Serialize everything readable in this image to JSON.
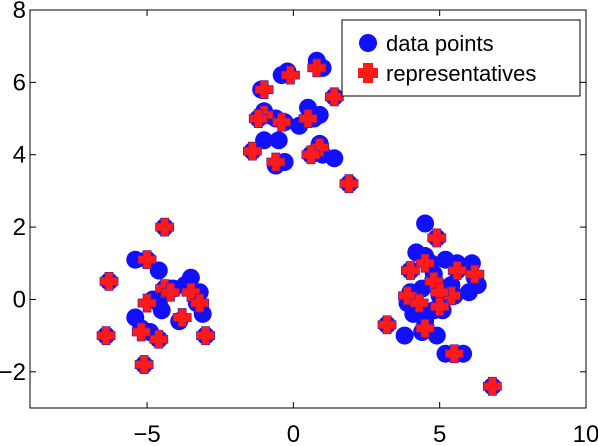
{
  "chart_data": {
    "type": "scatter",
    "title": "",
    "xlabel": "",
    "ylabel": "",
    "xlim": [
      -9,
      10
    ],
    "ylim": [
      -3,
      8
    ],
    "xticks": [
      -5,
      0,
      5,
      10
    ],
    "yticks": [
      -2,
      0,
      2,
      4,
      6,
      8
    ],
    "xtick_labels": [
      "−5",
      "0",
      "5",
      "10"
    ],
    "ytick_labels": [
      "−2",
      "0",
      "2",
      "4",
      "6",
      "8"
    ],
    "grid": false,
    "legend_position": "top-right",
    "series": [
      {
        "name": "data points",
        "marker": "circle",
        "color": "#1010ff",
        "points": [
          [
            -5.4,
            1.1
          ],
          [
            -5.0,
            1.1
          ],
          [
            -4.6,
            0.8
          ],
          [
            -4.4,
            0.3
          ],
          [
            -4.1,
            0.3
          ],
          [
            -3.7,
            0.4
          ],
          [
            -3.5,
            0.6
          ],
          [
            -3.2,
            0.2
          ],
          [
            -4.8,
            0.0
          ],
          [
            -4.6,
            -0.1
          ],
          [
            -4.2,
            0.3
          ],
          [
            -3.9,
            -0.6
          ],
          [
            -4.5,
            -0.3
          ],
          [
            -5.4,
            -0.5
          ],
          [
            -5.2,
            -0.8
          ],
          [
            -4.9,
            -0.9
          ],
          [
            -3.3,
            -0.1
          ],
          [
            -3.1,
            -0.4
          ],
          [
            -4.6,
            -1.1
          ],
          [
            -6.4,
            -1.0
          ],
          [
            -3.0,
            -1.0
          ],
          [
            -5.1,
            -1.8
          ],
          [
            -6.3,
            0.5
          ],
          [
            -4.4,
            2.0
          ],
          [
            -1.0,
            5.2
          ],
          [
            -1.1,
            5.8
          ],
          [
            -1.2,
            5.0
          ],
          [
            -1.4,
            4.1
          ],
          [
            -1.0,
            4.4
          ],
          [
            -0.5,
            4.4
          ],
          [
            -0.6,
            3.7
          ],
          [
            -0.3,
            3.8
          ],
          [
            -0.4,
            6.2
          ],
          [
            -0.2,
            6.3
          ],
          [
            0.2,
            4.8
          ],
          [
            0.5,
            5.3
          ],
          [
            0.7,
            5.0
          ],
          [
            0.9,
            4.3
          ],
          [
            1.0,
            4.0
          ],
          [
            1.4,
            3.9
          ],
          [
            0.6,
            4.0
          ],
          [
            0.8,
            6.6
          ],
          [
            1.0,
            6.4
          ],
          [
            0.9,
            5.1
          ],
          [
            1.4,
            5.6
          ],
          [
            1.9,
            3.2
          ],
          [
            -0.3,
            4.9
          ],
          [
            -0.6,
            5.0
          ],
          [
            4.5,
            2.1
          ],
          [
            4.9,
            1.7
          ],
          [
            4.2,
            1.3
          ],
          [
            4.5,
            1.2
          ],
          [
            4.7,
            1.0
          ],
          [
            5.2,
            1.1
          ],
          [
            5.6,
            1.0
          ],
          [
            6.1,
            1.0
          ],
          [
            4.0,
            0.8
          ],
          [
            4.8,
            0.7
          ],
          [
            5.6,
            0.8
          ],
          [
            6.2,
            0.6
          ],
          [
            6.3,
            0.4
          ],
          [
            4.9,
            0.4
          ],
          [
            5.4,
            0.4
          ],
          [
            4.0,
            0.2
          ],
          [
            4.4,
            0.3
          ],
          [
            5.0,
            0.1
          ],
          [
            5.5,
            0.1
          ],
          [
            6.0,
            0.2
          ],
          [
            3.9,
            -0.1
          ],
          [
            4.3,
            -0.2
          ],
          [
            4.8,
            -0.3
          ],
          [
            5.1,
            -0.3
          ],
          [
            4.1,
            -0.4
          ],
          [
            4.5,
            -0.6
          ],
          [
            4.4,
            -0.9
          ],
          [
            3.8,
            -1.0
          ],
          [
            4.9,
            -1.0
          ],
          [
            5.2,
            -1.5
          ],
          [
            5.8,
            -1.5
          ],
          [
            3.2,
            -0.7
          ],
          [
            6.8,
            -2.4
          ]
        ]
      },
      {
        "name": "representatives",
        "marker": "plus",
        "color": "#ff1a1a",
        "points": [
          [
            -5.0,
            1.1
          ],
          [
            -4.4,
            2.0
          ],
          [
            -6.3,
            0.5
          ],
          [
            -4.4,
            0.3
          ],
          [
            -4.2,
            0.2
          ],
          [
            -3.5,
            0.2
          ],
          [
            -5.0,
            -0.1
          ],
          [
            -3.8,
            -0.5
          ],
          [
            -5.2,
            -0.9
          ],
          [
            -4.6,
            -1.1
          ],
          [
            -3.2,
            -0.1
          ],
          [
            -6.4,
            -1.0
          ],
          [
            -3.0,
            -1.0
          ],
          [
            -5.1,
            -1.8
          ],
          [
            -1.0,
            5.8
          ],
          [
            -1.0,
            5.1
          ],
          [
            -1.2,
            5.0
          ],
          [
            -1.4,
            4.1
          ],
          [
            -0.4,
            4.9
          ],
          [
            -0.6,
            3.8
          ],
          [
            -0.1,
            6.2
          ],
          [
            0.5,
            5.0
          ],
          [
            0.8,
            6.4
          ],
          [
            0.9,
            4.2
          ],
          [
            0.6,
            4.0
          ],
          [
            1.4,
            5.6
          ],
          [
            1.9,
            3.2
          ],
          [
            4.9,
            1.7
          ],
          [
            4.5,
            1.0
          ],
          [
            4.0,
            0.8
          ],
          [
            5.6,
            0.8
          ],
          [
            6.2,
            0.7
          ],
          [
            4.8,
            0.5
          ],
          [
            5.4,
            0.1
          ],
          [
            5.0,
            0.2
          ],
          [
            3.9,
            0.1
          ],
          [
            4.3,
            -0.1
          ],
          [
            5.0,
            -0.2
          ],
          [
            4.5,
            -0.8
          ],
          [
            3.2,
            -0.7
          ],
          [
            5.5,
            -1.5
          ],
          [
            6.8,
            -2.4
          ]
        ]
      }
    ]
  },
  "legend": {
    "items": [
      {
        "label": "data points"
      },
      {
        "label": "representatives"
      }
    ]
  }
}
